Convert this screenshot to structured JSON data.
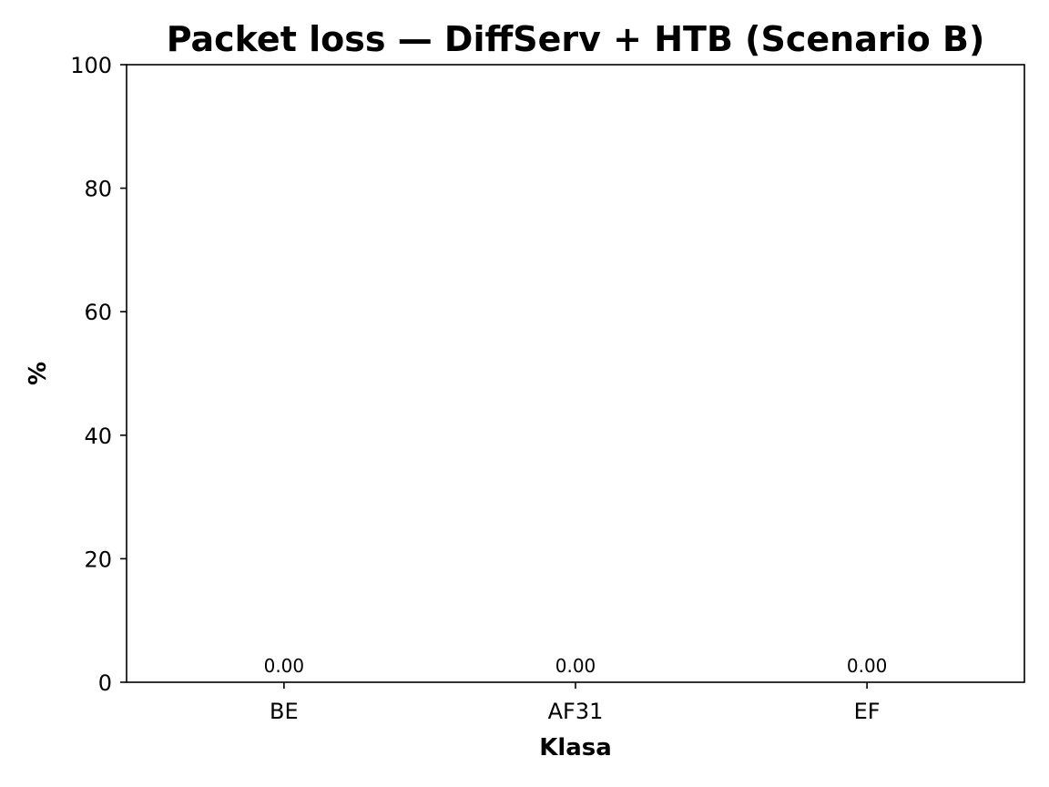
{
  "chart_data": {
    "type": "bar",
    "title": "Packet loss — DiffServ + HTB (Scenario B)",
    "xlabel": "Klasa",
    "ylabel": "%",
    "categories": [
      "BE",
      "AF31",
      "EF"
    ],
    "values": [
      0.0,
      0.0,
      0.0
    ],
    "value_labels": [
      "0.00",
      "0.00",
      "0.00"
    ],
    "ylim": [
      0,
      100
    ],
    "yticks": [
      "0",
      "20",
      "40",
      "60",
      "80",
      "100"
    ],
    "ytick_values": [
      0,
      20,
      40,
      60,
      80,
      100
    ],
    "grid": false,
    "legend": "none",
    "bar_color": "#1f77b4"
  }
}
